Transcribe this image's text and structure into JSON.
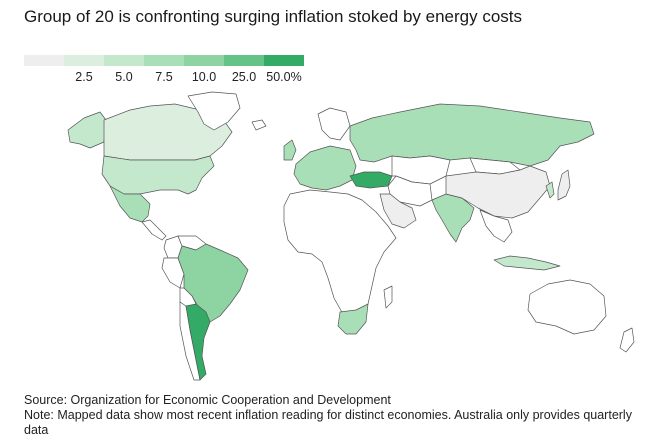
{
  "title": "Group of 20 is confronting surging inflation stoked by energy costs",
  "legend": {
    "bins": [
      {
        "label": "",
        "color": "#eeeeee"
      },
      {
        "label": "2.5",
        "color": "#dcefdf"
      },
      {
        "label": "5.0",
        "color": "#c3e8cc"
      },
      {
        "label": "7.5",
        "color": "#a8dfb7"
      },
      {
        "label": "10.0",
        "color": "#8dd4a2"
      },
      {
        "label": "25.0",
        "color": "#66c386"
      },
      {
        "label": "50.0%",
        "color": "#33aa66"
      }
    ]
  },
  "countries": [
    {
      "id": "canada",
      "color": "#dcefdf"
    },
    {
      "id": "alaska",
      "color": "#c3e8cc"
    },
    {
      "id": "greenland",
      "color": "#ffffff"
    },
    {
      "id": "usa",
      "color": "#c3e8cc"
    },
    {
      "id": "mexico",
      "color": "#a8dfb7"
    },
    {
      "id": "central-america",
      "color": "#ffffff"
    },
    {
      "id": "colombia",
      "color": "#ffffff"
    },
    {
      "id": "venezuela",
      "color": "#ffffff"
    },
    {
      "id": "peru",
      "color": "#ffffff"
    },
    {
      "id": "brazil",
      "color": "#8dd4a2"
    },
    {
      "id": "bolivia",
      "color": "#ffffff"
    },
    {
      "id": "chile",
      "color": "#ffffff"
    },
    {
      "id": "argentina",
      "color": "#33aa66"
    },
    {
      "id": "uk",
      "color": "#a8dfb7"
    },
    {
      "id": "europe",
      "color": "#a8dfb7"
    },
    {
      "id": "scandinavia",
      "color": "#ffffff"
    },
    {
      "id": "russia",
      "color": "#a8dfb7"
    },
    {
      "id": "turkey",
      "color": "#33aa66"
    },
    {
      "id": "saudi-arabia",
      "color": "#eeeeee"
    },
    {
      "id": "middle-east",
      "color": "#ffffff"
    },
    {
      "id": "central-asia",
      "color": "#ffffff"
    },
    {
      "id": "africa",
      "color": "#ffffff"
    },
    {
      "id": "south-africa",
      "color": "#a8dfb7"
    },
    {
      "id": "india",
      "color": "#a8dfb7"
    },
    {
      "id": "china",
      "color": "#eeeeee"
    },
    {
      "id": "mongolia",
      "color": "#ffffff"
    },
    {
      "id": "japan",
      "color": "#eeeeee"
    },
    {
      "id": "korea",
      "color": "#c3e8cc"
    },
    {
      "id": "southeast-asia",
      "color": "#ffffff"
    },
    {
      "id": "indonesia",
      "color": "#c3e8cc"
    },
    {
      "id": "australia",
      "color": "#ffffff"
    },
    {
      "id": "new-zealand",
      "color": "#ffffff"
    },
    {
      "id": "madagascar",
      "color": "#ffffff"
    },
    {
      "id": "iceland",
      "color": "#ffffff"
    }
  ],
  "source": "Source: Organization for Economic Cooperation and Development",
  "note": "Note: Mapped data show most recent inflation reading for distinct economies. Australia only provides quarterly data"
}
